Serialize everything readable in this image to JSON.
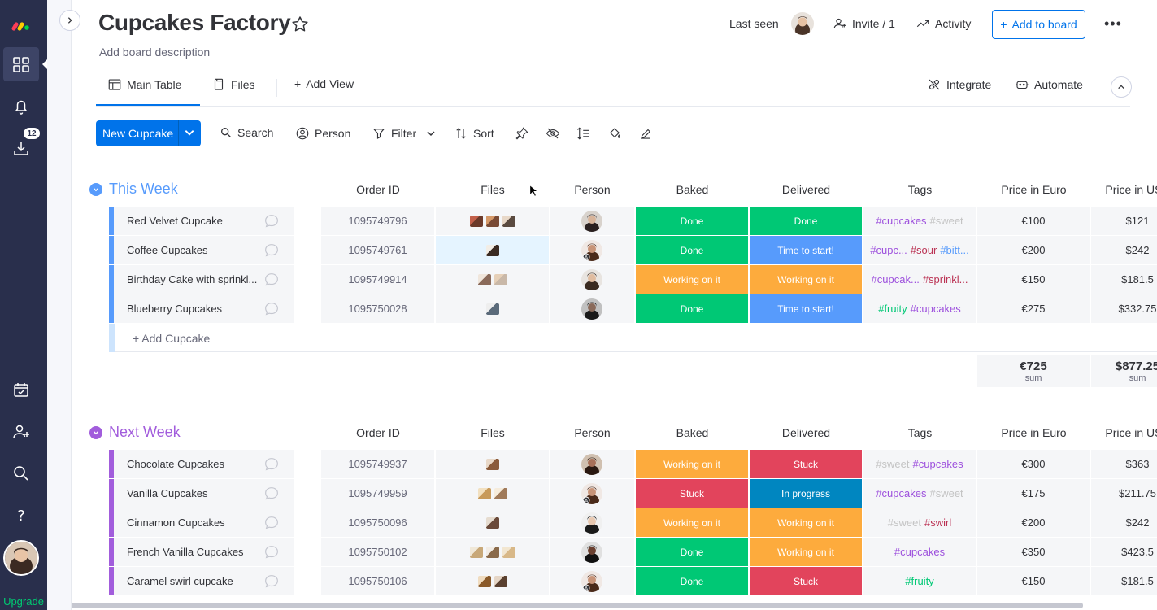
{
  "nav": {
    "upgrade": "Upgrade",
    "notifications_count": "12"
  },
  "board": {
    "title": "Cupcakes Factory",
    "description": "Add board description"
  },
  "header": {
    "last_seen": "Last seen",
    "invite": "Invite / 1",
    "activity": "Activity",
    "add_to_board": "Add to board"
  },
  "tabs": {
    "main_table": "Main Table",
    "files": "Files",
    "add_view": "Add View",
    "integrate": "Integrate",
    "automate": "Automate"
  },
  "toolbar": {
    "new_item": "New Cupcake",
    "search": "Search",
    "person": "Person",
    "filter": "Filter",
    "sort": "Sort"
  },
  "columns": {
    "order_id": "Order ID",
    "files": "Files",
    "person": "Person",
    "baked": "Baked",
    "delivered": "Delivered",
    "tags": "Tags",
    "price_euro": "Price in Euro",
    "price_usd": "Price in USD"
  },
  "colors": {
    "done": "#00c875",
    "working": "#fdab3d",
    "stuck": "#e2445c",
    "time_to_start": "#579bfc",
    "in_progress": "#0086c0",
    "accent": "#0073ea"
  },
  "groups": [
    {
      "title": "This Week",
      "color": "#579bfc",
      "add_label": "+ Add Cupcake",
      "sum_euro": "€725",
      "sum_usd": "$877.25",
      "sum_label": "sum",
      "rows": [
        {
          "name": "Red Velvet Cupcake",
          "order_id": "1095749796",
          "baked": "Done",
          "delivered": "Done",
          "tags": [
            "#cupcakes",
            "#sweet"
          ],
          "price_euro": "€100",
          "price_usd": "$121"
        },
        {
          "name": "Coffee Cupcakes",
          "order_id": "1095749761",
          "baked": "Done",
          "delivered": "Time to start!",
          "tags": [
            "#cupc...",
            "#sour",
            "#bitt..."
          ],
          "price_euro": "€200",
          "price_usd": "$242"
        },
        {
          "name": "Birthday Cake with sprinkl...",
          "order_id": "1095749914",
          "baked": "Working on it",
          "delivered": "Working on it",
          "tags": [
            "#cupcak...",
            "#sprinkl..."
          ],
          "price_euro": "€150",
          "price_usd": "$181.5"
        },
        {
          "name": "Blueberry Cupcakes",
          "order_id": "1095750028",
          "baked": "Done",
          "delivered": "Time to start!",
          "tags": [
            "#fruity",
            "#cupcakes"
          ],
          "price_euro": "€275",
          "price_usd": "$332.75"
        }
      ]
    },
    {
      "title": "Next Week",
      "color": "#a25ddc",
      "rows": [
        {
          "name": "Chocolate Cupcakes",
          "order_id": "1095749937",
          "baked": "Working on it",
          "delivered": "Stuck",
          "tags": [
            "#sweet",
            "#cupcakes"
          ],
          "price_euro": "€300",
          "price_usd": "$363"
        },
        {
          "name": "Vanilla Cupcakes",
          "order_id": "1095749959",
          "baked": "Stuck",
          "delivered": "In progress",
          "tags": [
            "#cupcakes",
            "#sweet"
          ],
          "price_euro": "€175",
          "price_usd": "$211.75"
        },
        {
          "name": "Cinnamon Cupcakes",
          "order_id": "1095750096",
          "baked": "Working on it",
          "delivered": "Working on it",
          "tags": [
            "#sweet",
            "#swirl"
          ],
          "price_euro": "€200",
          "price_usd": "$242"
        },
        {
          "name": "French Vanilla Cupcakes",
          "order_id": "1095750102",
          "baked": "Done",
          "delivered": "Working on it",
          "tags": [
            "#cupcakes"
          ],
          "price_euro": "€350",
          "price_usd": "$423.5"
        },
        {
          "name": "Caramel swirl cupcake",
          "order_id": "1095750106",
          "baked": "Done",
          "delivered": "Stuck",
          "tags": [
            "#fruity"
          ],
          "price_euro": "€150",
          "price_usd": "$181.5"
        }
      ]
    }
  ]
}
